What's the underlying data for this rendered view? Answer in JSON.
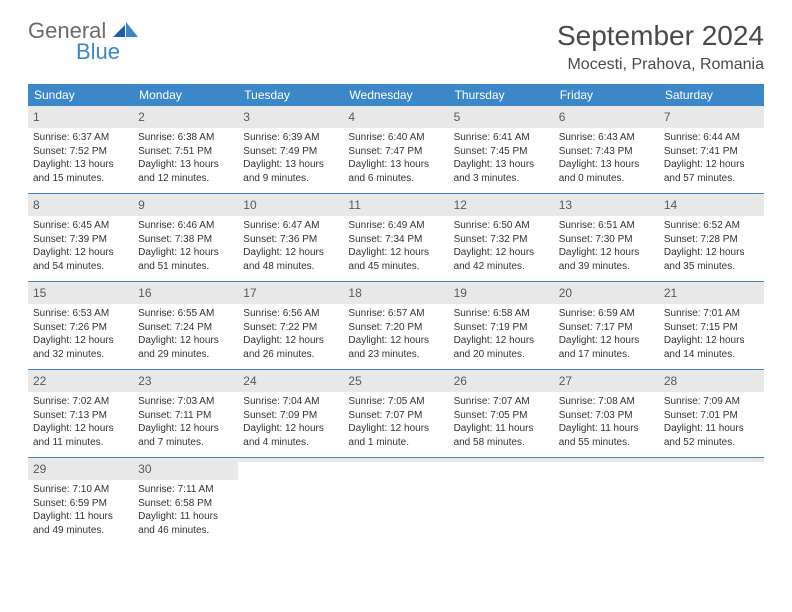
{
  "brand": {
    "general": "General",
    "blue": "Blue"
  },
  "title": "September 2024",
  "location": "Mocesti, Prahova, Romania",
  "colors": {
    "header_bg": "#3b87c8",
    "header_text": "#ffffff",
    "daynum_bg": "#e8e8e8",
    "border": "#3b87c8",
    "text": "#333333",
    "title_text": "#4a4a4a"
  },
  "day_names": [
    "Sunday",
    "Monday",
    "Tuesday",
    "Wednesday",
    "Thursday",
    "Friday",
    "Saturday"
  ],
  "weeks": [
    [
      {
        "n": "1",
        "sr": "Sunrise: 6:37 AM",
        "ss": "Sunset: 7:52 PM",
        "d1": "Daylight: 13 hours",
        "d2": "and 15 minutes."
      },
      {
        "n": "2",
        "sr": "Sunrise: 6:38 AM",
        "ss": "Sunset: 7:51 PM",
        "d1": "Daylight: 13 hours",
        "d2": "and 12 minutes."
      },
      {
        "n": "3",
        "sr": "Sunrise: 6:39 AM",
        "ss": "Sunset: 7:49 PM",
        "d1": "Daylight: 13 hours",
        "d2": "and 9 minutes."
      },
      {
        "n": "4",
        "sr": "Sunrise: 6:40 AM",
        "ss": "Sunset: 7:47 PM",
        "d1": "Daylight: 13 hours",
        "d2": "and 6 minutes."
      },
      {
        "n": "5",
        "sr": "Sunrise: 6:41 AM",
        "ss": "Sunset: 7:45 PM",
        "d1": "Daylight: 13 hours",
        "d2": "and 3 minutes."
      },
      {
        "n": "6",
        "sr": "Sunrise: 6:43 AM",
        "ss": "Sunset: 7:43 PM",
        "d1": "Daylight: 13 hours",
        "d2": "and 0 minutes."
      },
      {
        "n": "7",
        "sr": "Sunrise: 6:44 AM",
        "ss": "Sunset: 7:41 PM",
        "d1": "Daylight: 12 hours",
        "d2": "and 57 minutes."
      }
    ],
    [
      {
        "n": "8",
        "sr": "Sunrise: 6:45 AM",
        "ss": "Sunset: 7:39 PM",
        "d1": "Daylight: 12 hours",
        "d2": "and 54 minutes."
      },
      {
        "n": "9",
        "sr": "Sunrise: 6:46 AM",
        "ss": "Sunset: 7:38 PM",
        "d1": "Daylight: 12 hours",
        "d2": "and 51 minutes."
      },
      {
        "n": "10",
        "sr": "Sunrise: 6:47 AM",
        "ss": "Sunset: 7:36 PM",
        "d1": "Daylight: 12 hours",
        "d2": "and 48 minutes."
      },
      {
        "n": "11",
        "sr": "Sunrise: 6:49 AM",
        "ss": "Sunset: 7:34 PM",
        "d1": "Daylight: 12 hours",
        "d2": "and 45 minutes."
      },
      {
        "n": "12",
        "sr": "Sunrise: 6:50 AM",
        "ss": "Sunset: 7:32 PM",
        "d1": "Daylight: 12 hours",
        "d2": "and 42 minutes."
      },
      {
        "n": "13",
        "sr": "Sunrise: 6:51 AM",
        "ss": "Sunset: 7:30 PM",
        "d1": "Daylight: 12 hours",
        "d2": "and 39 minutes."
      },
      {
        "n": "14",
        "sr": "Sunrise: 6:52 AM",
        "ss": "Sunset: 7:28 PM",
        "d1": "Daylight: 12 hours",
        "d2": "and 35 minutes."
      }
    ],
    [
      {
        "n": "15",
        "sr": "Sunrise: 6:53 AM",
        "ss": "Sunset: 7:26 PM",
        "d1": "Daylight: 12 hours",
        "d2": "and 32 minutes."
      },
      {
        "n": "16",
        "sr": "Sunrise: 6:55 AM",
        "ss": "Sunset: 7:24 PM",
        "d1": "Daylight: 12 hours",
        "d2": "and 29 minutes."
      },
      {
        "n": "17",
        "sr": "Sunrise: 6:56 AM",
        "ss": "Sunset: 7:22 PM",
        "d1": "Daylight: 12 hours",
        "d2": "and 26 minutes."
      },
      {
        "n": "18",
        "sr": "Sunrise: 6:57 AM",
        "ss": "Sunset: 7:20 PM",
        "d1": "Daylight: 12 hours",
        "d2": "and 23 minutes."
      },
      {
        "n": "19",
        "sr": "Sunrise: 6:58 AM",
        "ss": "Sunset: 7:19 PM",
        "d1": "Daylight: 12 hours",
        "d2": "and 20 minutes."
      },
      {
        "n": "20",
        "sr": "Sunrise: 6:59 AM",
        "ss": "Sunset: 7:17 PM",
        "d1": "Daylight: 12 hours",
        "d2": "and 17 minutes."
      },
      {
        "n": "21",
        "sr": "Sunrise: 7:01 AM",
        "ss": "Sunset: 7:15 PM",
        "d1": "Daylight: 12 hours",
        "d2": "and 14 minutes."
      }
    ],
    [
      {
        "n": "22",
        "sr": "Sunrise: 7:02 AM",
        "ss": "Sunset: 7:13 PM",
        "d1": "Daylight: 12 hours",
        "d2": "and 11 minutes."
      },
      {
        "n": "23",
        "sr": "Sunrise: 7:03 AM",
        "ss": "Sunset: 7:11 PM",
        "d1": "Daylight: 12 hours",
        "d2": "and 7 minutes."
      },
      {
        "n": "24",
        "sr": "Sunrise: 7:04 AM",
        "ss": "Sunset: 7:09 PM",
        "d1": "Daylight: 12 hours",
        "d2": "and 4 minutes."
      },
      {
        "n": "25",
        "sr": "Sunrise: 7:05 AM",
        "ss": "Sunset: 7:07 PM",
        "d1": "Daylight: 12 hours",
        "d2": "and 1 minute."
      },
      {
        "n": "26",
        "sr": "Sunrise: 7:07 AM",
        "ss": "Sunset: 7:05 PM",
        "d1": "Daylight: 11 hours",
        "d2": "and 58 minutes."
      },
      {
        "n": "27",
        "sr": "Sunrise: 7:08 AM",
        "ss": "Sunset: 7:03 PM",
        "d1": "Daylight: 11 hours",
        "d2": "and 55 minutes."
      },
      {
        "n": "28",
        "sr": "Sunrise: 7:09 AM",
        "ss": "Sunset: 7:01 PM",
        "d1": "Daylight: 11 hours",
        "d2": "and 52 minutes."
      }
    ],
    [
      {
        "n": "29",
        "sr": "Sunrise: 7:10 AM",
        "ss": "Sunset: 6:59 PM",
        "d1": "Daylight: 11 hours",
        "d2": "and 49 minutes."
      },
      {
        "n": "30",
        "sr": "Sunrise: 7:11 AM",
        "ss": "Sunset: 6:58 PM",
        "d1": "Daylight: 11 hours",
        "d2": "and 46 minutes."
      },
      {
        "n": "",
        "sr": "",
        "ss": "",
        "d1": "",
        "d2": "",
        "empty": true
      },
      {
        "n": "",
        "sr": "",
        "ss": "",
        "d1": "",
        "d2": "",
        "empty": true
      },
      {
        "n": "",
        "sr": "",
        "ss": "",
        "d1": "",
        "d2": "",
        "empty": true
      },
      {
        "n": "",
        "sr": "",
        "ss": "",
        "d1": "",
        "d2": "",
        "empty": true
      },
      {
        "n": "",
        "sr": "",
        "ss": "",
        "d1": "",
        "d2": "",
        "empty": true
      }
    ]
  ]
}
